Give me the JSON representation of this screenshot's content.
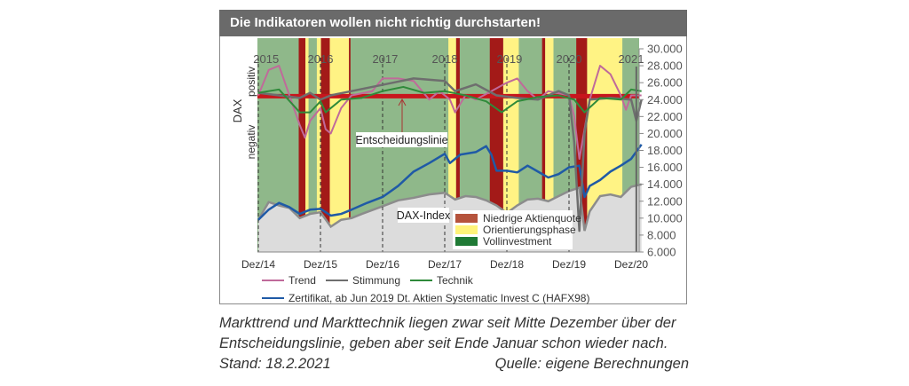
{
  "title": "Die Indikatoren wollen nicht richtig durchstarten!",
  "caption": {
    "line1": "Markttrend und Markttechnik liegen zwar seit Mitte Dezember über der",
    "line2": "Entscheidungslinie, geben aber seit Ende Januar schon wieder nach.",
    "stand": "Stand: 18.2.2021",
    "quelle": "Quelle: eigene Berechnungen"
  },
  "chart_data": {
    "type": "line",
    "time_unit": "months since Dez/14",
    "ylim": [
      6000,
      30000
    ],
    "yticks": [
      "6.000",
      "8.000",
      "10.000",
      "12.000",
      "14.000",
      "16.000",
      "18.000",
      "20.000",
      "22.000",
      "24.000",
      "26.000",
      "28.000",
      "30.000"
    ],
    "ytick_values": [
      6000,
      8000,
      10000,
      12000,
      14000,
      16000,
      18000,
      20000,
      22000,
      24000,
      26000,
      28000,
      30000
    ],
    "xticks": [
      "Dez/14",
      "Dez/15",
      "Dez/16",
      "Dez/17",
      "Dez/18",
      "Dez/19",
      "Dez/20"
    ],
    "xtick_values": [
      0,
      12,
      24,
      36,
      48,
      60,
      72
    ],
    "year_labels": [
      "2015",
      "2016",
      "2017",
      "2018",
      "2019",
      "2020",
      "2021"
    ],
    "year_label_values": [
      1.5,
      12,
      24.5,
      36,
      48.5,
      60,
      72
    ],
    "left_labels": {
      "axis": "DAX",
      "positive": "positiv",
      "negative": "negativ"
    },
    "decision_line": {
      "label": "Entscheidungslinie",
      "value": 24400
    },
    "dax_label": "DAX-Index",
    "phases": {
      "background": "Vollinvestment",
      "bands": [
        {
          "type": "red",
          "from": 7.8,
          "to": 9.1
        },
        {
          "type": "yellow",
          "from": 9.1,
          "to": 9.7
        },
        {
          "type": "yellow",
          "from": 11.3,
          "to": 12.1
        },
        {
          "type": "red",
          "from": 12.1,
          "to": 13.8
        },
        {
          "type": "yellow",
          "from": 13.8,
          "to": 17.5
        },
        {
          "type": "red",
          "from": 17.5,
          "to": 17.8
        },
        {
          "type": "yellow",
          "from": 36.7,
          "to": 38.2
        },
        {
          "type": "red",
          "from": 38.2,
          "to": 38.9
        },
        {
          "type": "red",
          "from": 44.7,
          "to": 47.3
        },
        {
          "type": "yellow",
          "from": 47.3,
          "to": 50.3
        },
        {
          "type": "red",
          "from": 54.8,
          "to": 55.4
        },
        {
          "type": "yellow",
          "from": 55.4,
          "to": 57
        },
        {
          "type": "red",
          "from": 61.4,
          "to": 63.5
        },
        {
          "type": "yellow",
          "from": 63.5,
          "to": 70.3
        }
      ]
    },
    "phase_legend": [
      {
        "label": "Niedrige Aktienquote",
        "color": "#b5533c"
      },
      {
        "label": "Orientierungsphase",
        "color": "#fff37a"
      },
      {
        "label": "Vollinvestment",
        "color": "#1f7a35"
      }
    ],
    "series": [
      {
        "name": "DAX-Index",
        "color": "#8c8c8c",
        "fill": "#dcdcdc",
        "points": [
          [
            0,
            9800
          ],
          [
            2,
            11900
          ],
          [
            4,
            11500
          ],
          [
            6,
            11200
          ],
          [
            8,
            10000
          ],
          [
            10,
            10500
          ],
          [
            12,
            10700
          ],
          [
            14,
            9000
          ],
          [
            16,
            9800
          ],
          [
            18,
            10000
          ],
          [
            20,
            10500
          ],
          [
            24,
            11400
          ],
          [
            27,
            12100
          ],
          [
            30,
            12400
          ],
          [
            33,
            12800
          ],
          [
            36,
            13000
          ],
          [
            38,
            12200
          ],
          [
            40,
            12600
          ],
          [
            42,
            12500
          ],
          [
            44,
            12100
          ],
          [
            46,
            11500
          ],
          [
            48,
            10600
          ],
          [
            50,
            11500
          ],
          [
            52,
            12200
          ],
          [
            54,
            12300
          ],
          [
            56,
            12000
          ],
          [
            58,
            12600
          ],
          [
            60,
            13200
          ],
          [
            62,
            13600
          ],
          [
            63,
            8500
          ],
          [
            64,
            10800
          ],
          [
            66,
            12600
          ],
          [
            68,
            12800
          ],
          [
            70,
            12500
          ],
          [
            72,
            13700
          ],
          [
            74,
            14000
          ]
        ]
      },
      {
        "name": "Zertifikat, ab Jun 2019 Dt. Aktien Systematic Invest C (HAFX98)",
        "color": "#1f5aa6",
        "points": [
          [
            0,
            9800
          ],
          [
            2,
            11000
          ],
          [
            4,
            11800
          ],
          [
            6,
            11300
          ],
          [
            8,
            10500
          ],
          [
            10,
            11000
          ],
          [
            12,
            11100
          ],
          [
            14,
            10300
          ],
          [
            16,
            10500
          ],
          [
            18,
            11000
          ],
          [
            21,
            11800
          ],
          [
            24,
            12500
          ],
          [
            27,
            13800
          ],
          [
            30,
            15500
          ],
          [
            33,
            16500
          ],
          [
            36,
            17600
          ],
          [
            37,
            16500
          ],
          [
            39,
            17500
          ],
          [
            42,
            17800
          ],
          [
            44,
            18500
          ],
          [
            45,
            17500
          ],
          [
            46,
            15600
          ],
          [
            48,
            15600
          ],
          [
            50,
            15400
          ],
          [
            52,
            16200
          ],
          [
            54,
            15500
          ],
          [
            56,
            14800
          ],
          [
            58,
            15200
          ],
          [
            60,
            16000
          ],
          [
            62,
            16200
          ],
          [
            63,
            12500
          ],
          [
            64,
            13800
          ],
          [
            66,
            14500
          ],
          [
            68,
            15500
          ],
          [
            70,
            16200
          ],
          [
            72,
            17000
          ],
          [
            74,
            18700
          ]
        ]
      },
      {
        "name": "Trend",
        "color": "#c06a9a",
        "points": [
          [
            0,
            24500
          ],
          [
            2,
            27500
          ],
          [
            4,
            28000
          ],
          [
            6,
            24500
          ],
          [
            8,
            21000
          ],
          [
            9,
            19500
          ],
          [
            10,
            21500
          ],
          [
            12,
            23000
          ],
          [
            13,
            20500
          ],
          [
            14,
            20000
          ],
          [
            16,
            23000
          ],
          [
            18,
            24500
          ],
          [
            22,
            25000
          ],
          [
            24,
            26500
          ],
          [
            27,
            26500
          ],
          [
            30,
            26200
          ],
          [
            33,
            24000
          ],
          [
            35,
            25000
          ],
          [
            37,
            24000
          ],
          [
            38,
            22500
          ],
          [
            40,
            24500
          ],
          [
            42,
            24000
          ],
          [
            45,
            25000
          ],
          [
            48,
            26000
          ],
          [
            50,
            26500
          ],
          [
            52,
            25000
          ],
          [
            54,
            24000
          ],
          [
            56,
            25000
          ],
          [
            60,
            24500
          ],
          [
            61,
            22000
          ],
          [
            62,
            17000
          ],
          [
            64,
            24000
          ],
          [
            66,
            28000
          ],
          [
            68,
            27000
          ],
          [
            70,
            24500
          ],
          [
            71,
            22800
          ],
          [
            72,
            24500
          ],
          [
            74,
            24500
          ]
        ]
      },
      {
        "name": "Stimmung",
        "color": "#6e6e6e",
        "points": [
          [
            0,
            24800
          ],
          [
            4,
            24500
          ],
          [
            8,
            24200
          ],
          [
            10,
            24800
          ],
          [
            12,
            24000
          ],
          [
            14,
            24500
          ],
          [
            18,
            25000
          ],
          [
            22,
            25500
          ],
          [
            26,
            26000
          ],
          [
            30,
            26500
          ],
          [
            36,
            26200
          ],
          [
            38,
            25000
          ],
          [
            42,
            25800
          ],
          [
            46,
            24500
          ],
          [
            50,
            24200
          ],
          [
            54,
            24000
          ],
          [
            58,
            25000
          ],
          [
            60,
            24500
          ],
          [
            61,
            19000
          ],
          [
            62,
            8500
          ],
          [
            63,
            20000
          ],
          [
            64,
            24000
          ],
          [
            68,
            24200
          ],
          [
            72,
            24000
          ],
          [
            73,
            21500
          ],
          [
            74,
            24000
          ]
        ]
      },
      {
        "name": "Technik",
        "color": "#2f8a3a",
        "points": [
          [
            0,
            24800
          ],
          [
            4,
            25200
          ],
          [
            8,
            22500
          ],
          [
            10,
            22500
          ],
          [
            12,
            23800
          ],
          [
            13,
            22500
          ],
          [
            16,
            24000
          ],
          [
            20,
            24200
          ],
          [
            24,
            25000
          ],
          [
            28,
            25500
          ],
          [
            32,
            24800
          ],
          [
            36,
            25000
          ],
          [
            40,
            24500
          ],
          [
            44,
            23800
          ],
          [
            47,
            22500
          ],
          [
            50,
            23800
          ],
          [
            54,
            24300
          ],
          [
            58,
            24500
          ],
          [
            61,
            24000
          ],
          [
            63,
            22500
          ],
          [
            66,
            24200
          ],
          [
            70,
            24000
          ],
          [
            72,
            25200
          ],
          [
            74,
            25000
          ]
        ]
      }
    ],
    "line_legend": [
      "Trend",
      "Stimmung",
      "Technik",
      "Zertifikat, ab Jun 2019 Dt. Aktien Systematic Invest C (HAFX98)"
    ]
  }
}
